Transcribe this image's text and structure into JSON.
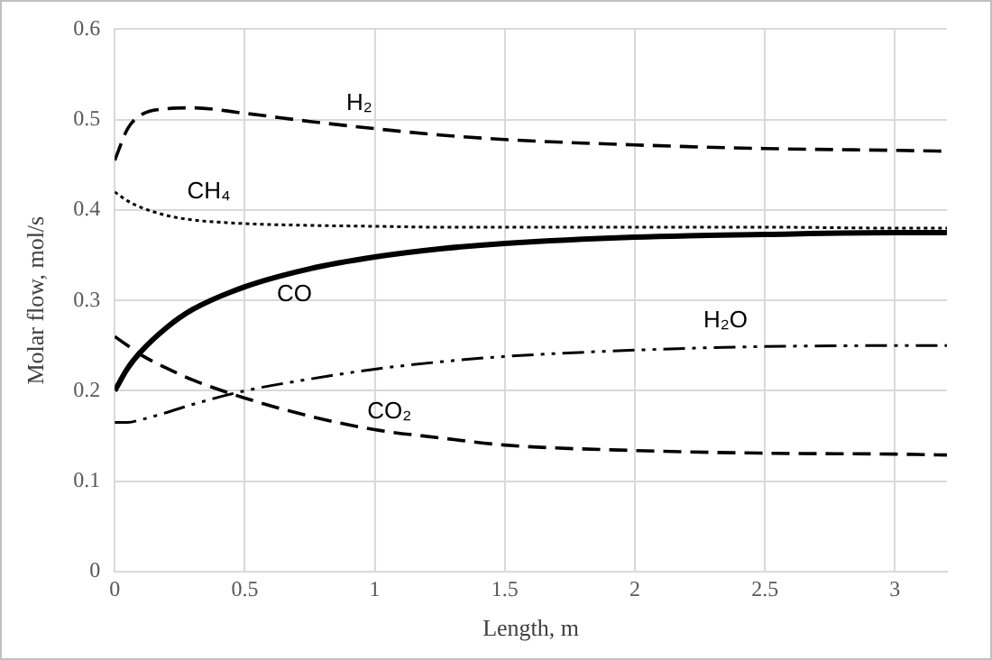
{
  "chart_data": {
    "type": "line",
    "xlabel": "Length, m",
    "ylabel": "Molar flow, mol/s",
    "x": [
      0,
      0.05,
      0.1,
      0.2,
      0.3,
      0.5,
      0.75,
      1,
      1.25,
      1.5,
      2,
      2.5,
      3,
      3.2
    ],
    "xlim": [
      0,
      3.2
    ],
    "xticks": [
      0,
      0.5,
      1,
      1.5,
      2,
      2.5,
      3
    ],
    "ylim": [
      0,
      0.6
    ],
    "yticks": [
      0,
      0.1,
      0.2,
      0.3,
      0.4,
      0.5,
      0.6
    ],
    "grid": true,
    "legend": false,
    "marker": "none",
    "series": [
      {
        "name": "H₂",
        "color": "#000000",
        "line_style": "dashed",
        "values": [
          0.455,
          0.49,
          0.505,
          0.512,
          0.513,
          0.507,
          0.498,
          0.49,
          0.483,
          0.478,
          0.472,
          0.468,
          0.466,
          0.465
        ]
      },
      {
        "name": "CH₄",
        "color": "#000000",
        "line_style": "dotted",
        "values": [
          0.42,
          0.41,
          0.403,
          0.394,
          0.389,
          0.385,
          0.383,
          0.382,
          0.381,
          0.381,
          0.381,
          0.381,
          0.38,
          0.38
        ]
      },
      {
        "name": "CO",
        "color": "#000000",
        "line_style": "solid",
        "values": [
          0.2,
          0.225,
          0.243,
          0.27,
          0.29,
          0.315,
          0.335,
          0.348,
          0.357,
          0.363,
          0.37,
          0.373,
          0.375,
          0.375
        ]
      },
      {
        "name": "H₂O",
        "color": "#000000",
        "line_style": "dashdot",
        "values": [
          0.165,
          0.165,
          0.168,
          0.176,
          0.185,
          0.2,
          0.213,
          0.224,
          0.232,
          0.238,
          0.245,
          0.249,
          0.25,
          0.25
        ]
      },
      {
        "name": "CO₂",
        "color": "#000000",
        "line_style": "dashed",
        "values": [
          0.26,
          0.25,
          0.24,
          0.225,
          0.212,
          0.192,
          0.172,
          0.157,
          0.148,
          0.14,
          0.134,
          0.131,
          0.13,
          0.129
        ]
      }
    ]
  }
}
